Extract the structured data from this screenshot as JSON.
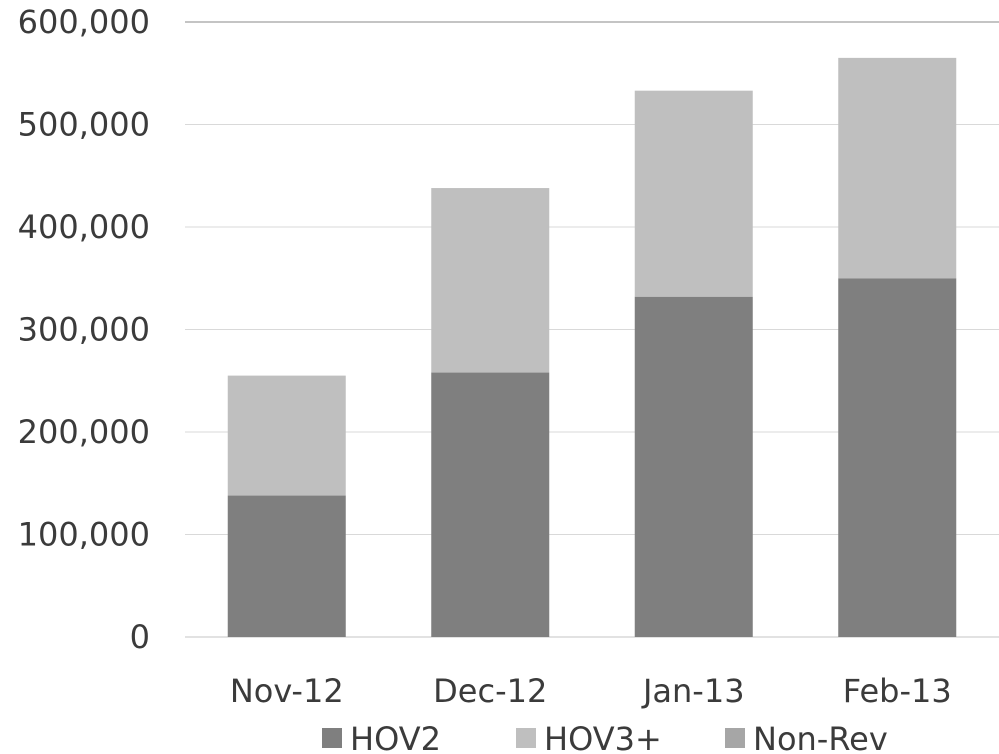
{
  "chart_data": {
    "type": "bar",
    "stacked": true,
    "title": "",
    "xlabel": "",
    "ylabel": "",
    "ylim": [
      0,
      600000
    ],
    "yticks": [
      0,
      100000,
      200000,
      300000,
      400000,
      500000,
      600000
    ],
    "ytick_labels": [
      "0",
      "100,000",
      "200,000",
      "300,000",
      "400,000",
      "500,000",
      "600,000"
    ],
    "categories": [
      "Nov-12",
      "Dec-12",
      "Jan-13",
      "Feb-13"
    ],
    "series": [
      {
        "name": "HOV2",
        "color": "#7f7f7f",
        "values": [
          138000,
          258000,
          332000,
          350000
        ]
      },
      {
        "name": "HOV3+",
        "color": "#bfbfbf",
        "values": [
          117000,
          180000,
          201000,
          215000
        ]
      },
      {
        "name": "Non-Rev",
        "color": "#a6a6a6",
        "values": [
          0,
          0,
          0,
          0
        ]
      }
    ],
    "grid": true,
    "legend": "bottom"
  }
}
